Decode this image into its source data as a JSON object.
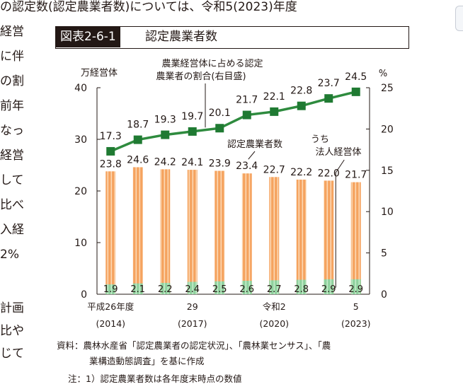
{
  "page": {
    "top_text": "の認定数(認定農業者数)については、令和5(2023)年度",
    "left_fragments": [
      "経営",
      "に伴",
      "の割",
      "前年",
      "なっ",
      "経営",
      "して",
      "比べ",
      "入経",
      "2%",
      "計画",
      "比や",
      "じて"
    ]
  },
  "figure": {
    "number": "図表2-6-1",
    "title": "認定農業者数"
  },
  "chart_data": {
    "type": "bar+line",
    "categories": [
      "2014",
      "2015",
      "2016",
      "2017",
      "2018",
      "2019",
      "2020",
      "2021",
      "2022",
      "2023"
    ],
    "x_tick_labels": [
      {
        "index": 0,
        "line1": "平成26年度",
        "line2": "(2014)"
      },
      {
        "index": 3,
        "line1": "29",
        "line2": "(2017)"
      },
      {
        "index": 6,
        "line1": "令和2",
        "line2": "(2020)"
      },
      {
        "index": 9,
        "line1": "5",
        "line2": "(2023)"
      }
    ],
    "series": [
      {
        "name": "認定農業者数",
        "kind": "bar",
        "axis": "left",
        "values": [
          23.8,
          24.6,
          24.2,
          24.1,
          23.9,
          23.4,
          22.7,
          22.2,
          22.0,
          21.7
        ]
      },
      {
        "name": "うち法人経営体",
        "kind": "bar",
        "axis": "left",
        "values": [
          1.9,
          2.1,
          2.2,
          2.4,
          2.5,
          2.6,
          2.7,
          2.8,
          2.9,
          2.9
        ]
      },
      {
        "name": "農業経営体に占める認定農業者の割合(右目盛)",
        "kind": "line",
        "axis": "right",
        "values": [
          17.3,
          18.7,
          19.3,
          19.7,
          20.1,
          21.7,
          22.1,
          22.8,
          23.7,
          24.5
        ]
      }
    ],
    "left_axis": {
      "unit": "万経営体",
      "range": [
        0,
        40
      ],
      "ticks": [
        0,
        10,
        20,
        30,
        40
      ]
    },
    "right_axis": {
      "unit": "%",
      "range": [
        0,
        25
      ],
      "ticks": [
        0,
        5,
        10,
        15,
        20,
        25
      ]
    },
    "annotations": {
      "line_label": [
        "農業経営体に占める認定",
        "農業者の割合(右目盛)"
      ],
      "bar_label": "認定農業者数",
      "corp_label": [
        "うち",
        "法人経営体"
      ]
    },
    "colors": {
      "bar": "#f5a35f",
      "bar_stripe": "#fcd8b4",
      "corp": "#8fd19e",
      "corp_stripe": "#c4ecca",
      "line": "#2e8b3e",
      "marker": "#1f7a32"
    }
  },
  "notes": {
    "source_line1": "資料：農林水産省「認定農業者の認定状況」、「農林業センサス」、「農",
    "source_line2": "業構造動態調査」を基に作成",
    "note_line": "注：1）認定農業者数は各年度末時点の数値"
  }
}
